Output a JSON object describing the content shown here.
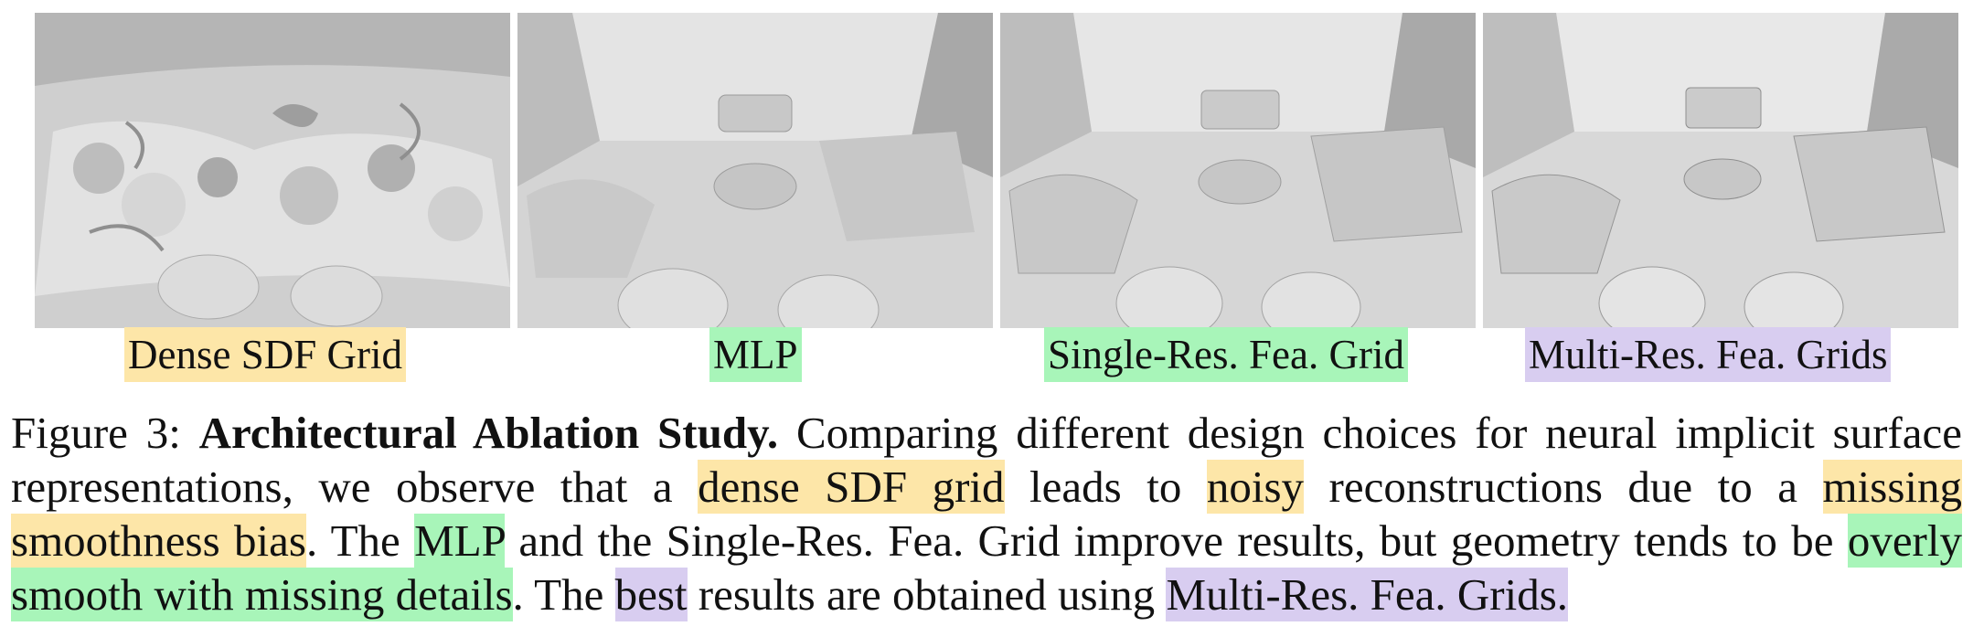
{
  "panels": [
    {
      "label": "Dense SDF Grid",
      "highlight": "#fde6a8"
    },
    {
      "label": "MLP",
      "highlight": "#a8f5b9"
    },
    {
      "label": "Single-Res. Fea. Grid",
      "highlight": "#a8f5b9"
    },
    {
      "label": "Multi-Res. Fea. Grids",
      "highlight": "#d8cdf0"
    }
  ],
  "caption": {
    "prefix": "Figure 3: ",
    "title": "Architectural Ablation Study.",
    "t1": " Comparing different design choices for neural implicit surface representations, we observe that a ",
    "h1": "dense SDF grid",
    "t2": " leads to ",
    "h2": "noisy",
    "t3": " reconstructions due to a ",
    "h3": "missing smoothness bias",
    "t4": ". The ",
    "h4": "MLP",
    "t5": " and the Single-Res. Fea. Grid improve results, but geometry tends to be ",
    "h5": "overly smooth with missing details",
    "t6": ". The ",
    "h6": "best",
    "t7": " results are obtained using ",
    "h7": "Multi-Res. Fea. Grids."
  }
}
